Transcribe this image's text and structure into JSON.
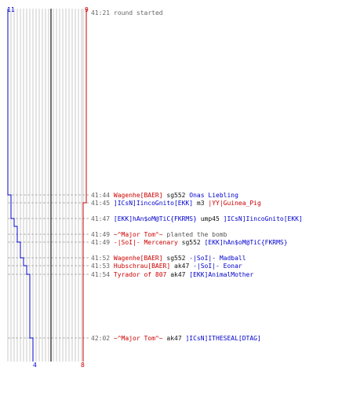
{
  "header": {
    "start_time": "41:21",
    "start_text": "round started"
  },
  "teams": {
    "blue": {
      "color": "#0000cc",
      "start_count": "11",
      "end_count": "4"
    },
    "red": {
      "color": "#cc0000",
      "start_count": "9",
      "end_count": "8"
    }
  },
  "colors": {
    "grid": "#c8c8c8",
    "dash": "#b0b0b0",
    "center": "#444444",
    "time": "#666666",
    "note": "#555555"
  },
  "events": [
    {
      "time": "41:44",
      "killer": "Wagenhe[BAER]",
      "killer_side": "red",
      "weapon": "sg552",
      "victim": "Onas Liebling",
      "victim_side": "blue"
    },
    {
      "time": "41:45",
      "killer": "]ICsN]IincoGnito[EKK]",
      "killer_side": "blue",
      "weapon": "m3",
      "victim": "|YY|Guinea_Pig",
      "victim_side": "red"
    },
    {
      "time": "41:47",
      "killer": "[EKK]hAn$oM@TiC{FKRMS}",
      "killer_side": "blue",
      "weapon": "ump45",
      "victim": "]ICsN]IincoGnito[EKK]",
      "victim_side": "blue"
    },
    {
      "time": "41:49",
      "killer": "~^Major Tom^~",
      "killer_side": "red",
      "note": "planted the bomb"
    },
    {
      "time": "41:49",
      "killer": "-|SoI|- Mercenary",
      "killer_side": "red",
      "weapon": "sg552",
      "victim": "[EKK]hAn$oM@TiC{FKRMS}",
      "victim_side": "blue"
    },
    {
      "time": "41:52",
      "killer": "Wagenhe[BAER]",
      "killer_side": "red",
      "weapon": "sg552",
      "victim": "-|SoI|- Madball",
      "victim_side": "blue"
    },
    {
      "time": "41:53",
      "killer": "Hubschrau[BAER]",
      "killer_side": "red",
      "weapon": "ak47",
      "victim": "-|SoI|- Eonar",
      "victim_side": "blue"
    },
    {
      "time": "41:54",
      "killer": "Tyrador of 807",
      "killer_side": "red",
      "weapon": "ak47",
      "victim": "[EKK]AnimalMother",
      "victim_side": "blue"
    },
    {
      "time": "42:02",
      "killer": "~^Major Tom^~",
      "killer_side": "red",
      "weapon": "ak47",
      "victim": "]ICsN]ITHESEAL[DTAG]",
      "victim_side": "blue"
    }
  ]
}
